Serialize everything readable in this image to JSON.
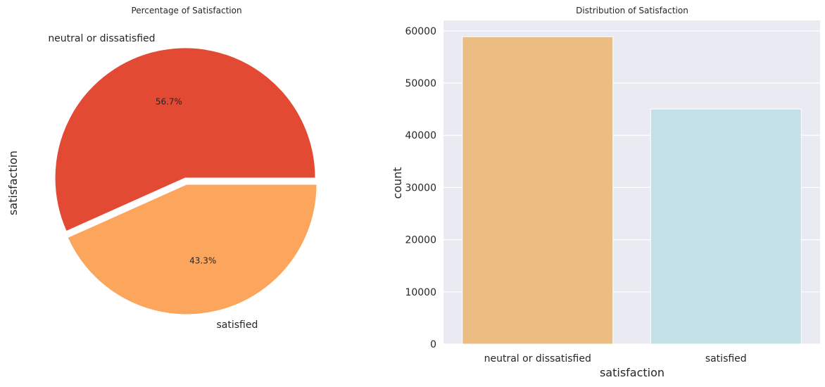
{
  "chart_data": [
    {
      "type": "pie",
      "title": "Percentage of Satisfaction",
      "ylabel": "satisfaction",
      "slices": [
        {
          "label": "neutral or dissatisfied",
          "percent": 56.7,
          "percent_label": "56.7%",
          "color": "#e34a33",
          "explode": 0.05
        },
        {
          "label": "satisfied",
          "percent": 43.3,
          "percent_label": "43.3%",
          "color": "#fca55d",
          "explode": 0
        }
      ]
    },
    {
      "type": "bar",
      "title": "Distribution of Satisfaction",
      "xlabel": "satisfaction",
      "ylabel": "count",
      "categories": [
        "neutral or dissatisfied",
        "satisfied"
      ],
      "values": [
        58879,
        45025
      ],
      "colors": [
        "#ebbd82",
        "#c3e0e8"
      ],
      "ylim": [
        0,
        62000
      ],
      "yticks": [
        0,
        10000,
        20000,
        30000,
        40000,
        50000,
        60000
      ],
      "grid": true,
      "background": "#eaeaf2"
    }
  ]
}
